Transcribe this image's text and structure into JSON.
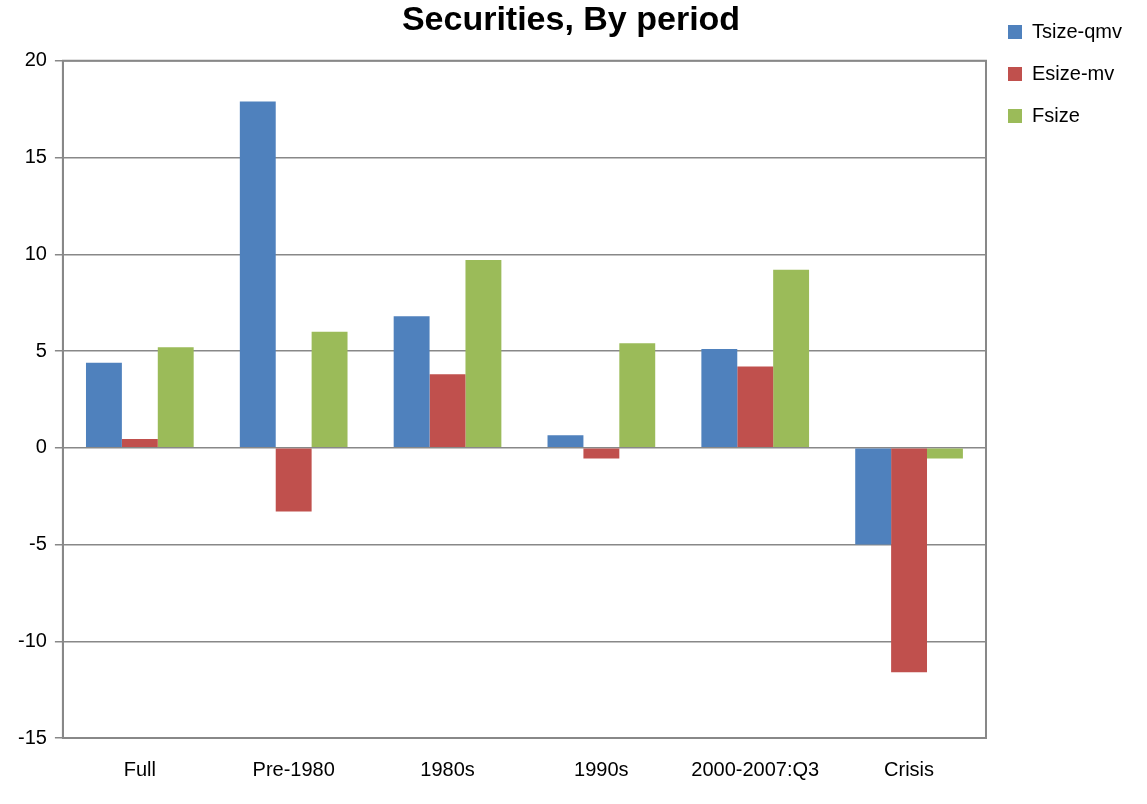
{
  "chart_data": {
    "type": "bar",
    "title": "Securities, By period",
    "categories": [
      "Full",
      "Pre-1980",
      "1980s",
      "1990s",
      "2000-2007:Q3",
      "Crisis"
    ],
    "series": [
      {
        "name": "Tsize-qmv",
        "color": "#4f81bd",
        "values": [
          4.4,
          17.9,
          6.8,
          0.65,
          5.1,
          -5.0
        ]
      },
      {
        "name": "Esize-mv",
        "color": "#c0504d",
        "values": [
          0.45,
          -3.3,
          3.8,
          -0.55,
          4.2,
          -11.6
        ]
      },
      {
        "name": "Fsize",
        "color": "#9bbb59",
        "values": [
          5.2,
          6.0,
          9.7,
          5.4,
          9.2,
          -0.55
        ]
      }
    ],
    "ylim": [
      -15,
      20
    ],
    "yticks": [
      -15,
      -10,
      -5,
      0,
      5,
      10,
      15,
      20
    ],
    "grid": "y",
    "legend": "top right"
  }
}
